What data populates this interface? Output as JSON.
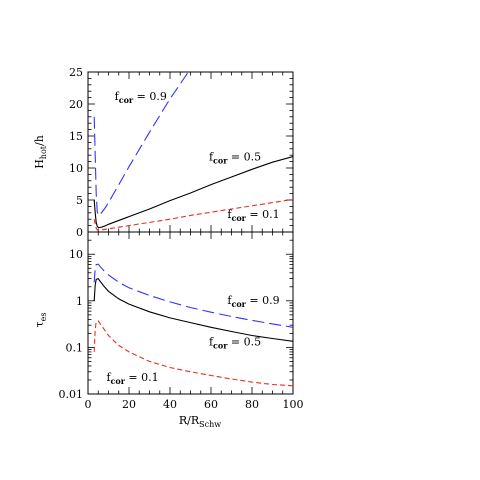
{
  "chart_data": [
    {
      "type": "line",
      "xlabel": "R/R",
      "xlabel_sub": "Schw",
      "ylabel": "H",
      "ylabel_sub": "hot",
      "ylabel_suffix": "/h",
      "xlim": [
        0,
        100
      ],
      "ylim": [
        0,
        25
      ],
      "xtick_labels": [],
      "ytick_values": [
        0,
        5,
        10,
        15,
        20,
        25
      ],
      "ytick_labels": [
        "0",
        "5",
        "10",
        "15",
        "20",
        "25"
      ],
      "series": [
        {
          "name": "f_cor = 0.9",
          "color": "#3333ff",
          "style": "long-dash",
          "x": [
            3,
            3.5,
            4,
            4.5,
            5,
            6,
            8,
            10,
            15,
            20,
            30,
            40,
            50,
            60
          ],
          "y": [
            18,
            12,
            6,
            3.2,
            2.6,
            2.8,
            3.6,
            4.6,
            7.4,
            10.2,
            15.6,
            20.8,
            25.5,
            30
          ]
        },
        {
          "name": "f_cor = 0.5",
          "color": "#000000",
          "style": "solid",
          "x": [
            3,
            3.5,
            4,
            4.5,
            5,
            6,
            8,
            10,
            20,
            30,
            40,
            50,
            60,
            70,
            80,
            90,
            100
          ],
          "y": [
            5,
            3,
            1.5,
            0.9,
            0.7,
            0.7,
            0.9,
            1.2,
            2.4,
            3.6,
            4.9,
            6.1,
            7.4,
            8.6,
            9.8,
            10.9,
            11.8
          ]
        },
        {
          "name": "f_cor = 0.1",
          "color": "#e83020",
          "style": "dash",
          "x": [
            3,
            3.5,
            4,
            4.5,
            5,
            6,
            8,
            10,
            20,
            30,
            40,
            50,
            60,
            70,
            80,
            90,
            100
          ],
          "y": [
            2,
            1.2,
            0.6,
            0.35,
            0.3,
            0.3,
            0.4,
            0.5,
            1.0,
            1.5,
            2.0,
            2.6,
            3.1,
            3.6,
            4.1,
            4.6,
            5.1
          ]
        }
      ],
      "annotations": [
        {
          "text": "f",
          "sub": "cor",
          "rest": " = 0.9",
          "x": 13,
          "y": 20.6
        },
        {
          "text": "f",
          "sub": "cor",
          "rest": " = 0.5",
          "x": 59,
          "y": 11.2
        },
        {
          "text": "f",
          "sub": "cor",
          "rest": " = 0.1",
          "x": 68,
          "y": 2.2
        }
      ]
    },
    {
      "type": "line",
      "log_y": true,
      "xlabel": "R/R",
      "xlabel_sub": "Schw",
      "ylabel": "τ",
      "ylabel_sub": "es",
      "xlim": [
        0,
        100
      ],
      "ylim": [
        0.01,
        30
      ],
      "xtick_values": [
        0,
        20,
        40,
        60,
        80,
        100
      ],
      "xtick_labels": [
        "0",
        "20",
        "40",
        "60",
        "80",
        "100"
      ],
      "ytick_values": [
        0.01,
        0.1,
        1,
        10
      ],
      "ytick_labels": [
        "0.01",
        "0.1",
        "1",
        "10"
      ],
      "series": [
        {
          "name": "f_cor = 0.9",
          "color": "#3333ff",
          "style": "long-dash",
          "x": [
            3,
            3.5,
            4,
            5,
            6,
            8,
            10,
            15,
            20,
            30,
            40,
            50,
            60,
            70,
            80,
            90,
            100
          ],
          "y": [
            2.5,
            5.0,
            6.0,
            6.1,
            5.4,
            4.3,
            3.6,
            2.5,
            1.9,
            1.3,
            0.95,
            0.72,
            0.57,
            0.46,
            0.38,
            0.32,
            0.27
          ]
        },
        {
          "name": "f_cor = 0.5",
          "color": "#000000",
          "style": "solid",
          "x": [
            3,
            3.5,
            4,
            5,
            6,
            8,
            10,
            15,
            20,
            30,
            40,
            50,
            60,
            70,
            80,
            90,
            100
          ],
          "y": [
            1.0,
            2.2,
            2.9,
            3.0,
            2.6,
            2.0,
            1.6,
            1.1,
            0.85,
            0.58,
            0.43,
            0.34,
            0.27,
            0.22,
            0.18,
            0.155,
            0.135
          ]
        },
        {
          "name": "f_cor = 0.1",
          "color": "#e83020",
          "style": "dash",
          "x": [
            3,
            3.5,
            4,
            5,
            6,
            8,
            10,
            15,
            20,
            30,
            40,
            50,
            60,
            70,
            80,
            90,
            100
          ],
          "y": [
            0.08,
            0.25,
            0.35,
            0.37,
            0.32,
            0.24,
            0.18,
            0.11,
            0.08,
            0.05,
            0.037,
            0.03,
            0.025,
            0.021,
            0.018,
            0.016,
            0.015
          ]
        }
      ],
      "annotations": [
        {
          "text": "f",
          "sub": "cor",
          "rest": " = 0.9",
          "x": 68,
          "y": 0.85
        },
        {
          "text": "f",
          "sub": "cor",
          "rest": " = 0.5",
          "x": 59,
          "y": 0.11
        },
        {
          "text": "f",
          "sub": "cor",
          "rest": " = 0.1",
          "x": 9,
          "y": 0.019
        }
      ]
    }
  ]
}
